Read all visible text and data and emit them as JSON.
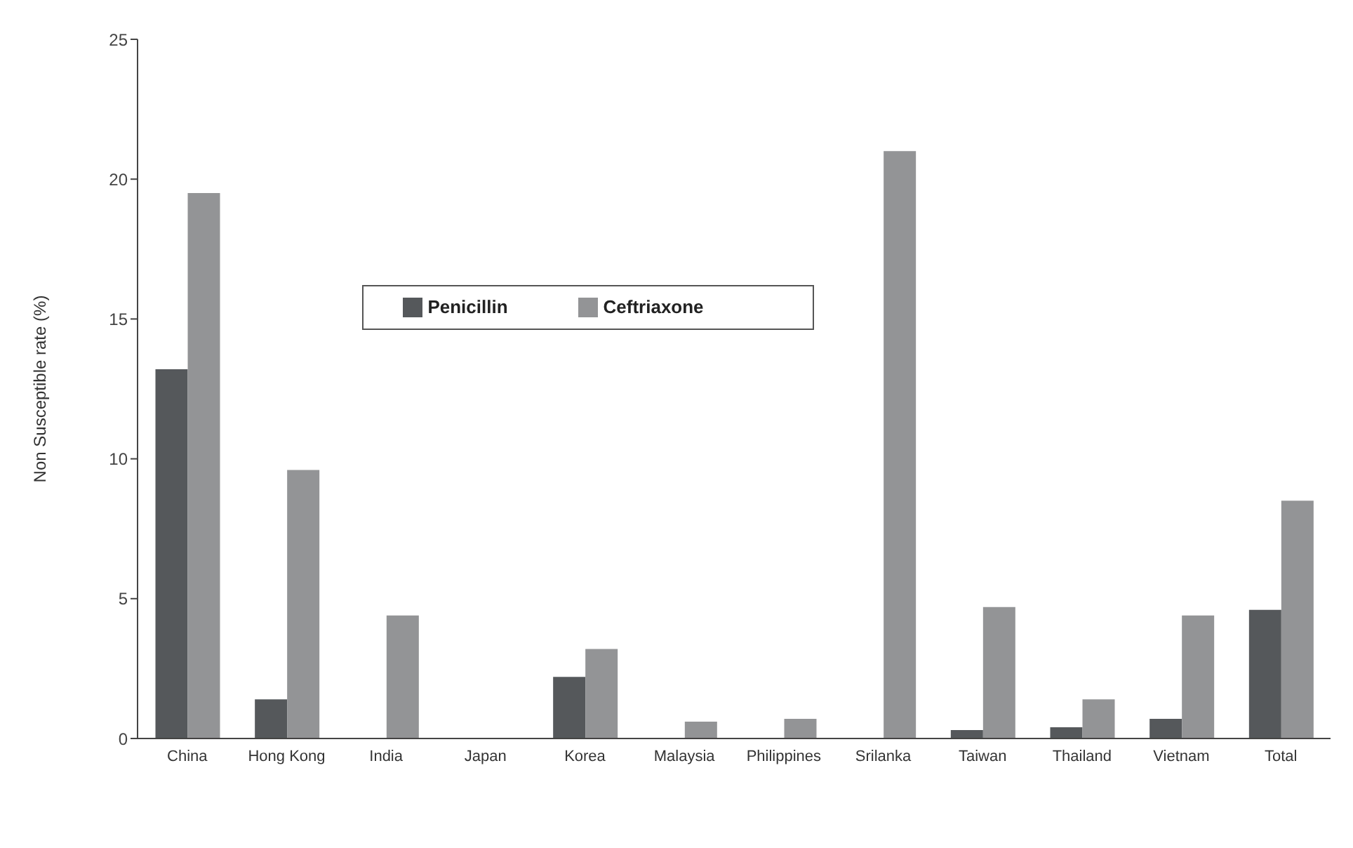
{
  "chart_data": {
    "type": "bar",
    "ylabel": "Non Susceptible rate (%)",
    "categories": [
      "China",
      "Hong Kong",
      "India",
      "Japan",
      "Korea",
      "Malaysia",
      "Philippines",
      "Srilanka",
      "Taiwan",
      "Thailand",
      "Vietnam",
      "Total"
    ],
    "series": [
      {
        "name": "Penicillin",
        "color": "#55585b",
        "values": [
          13.2,
          1.4,
          0,
          0,
          2.2,
          0,
          0,
          0,
          0.3,
          0.4,
          0.7,
          4.6
        ]
      },
      {
        "name": "Ceftriaxone",
        "color": "#939496",
        "values": [
          19.5,
          9.6,
          4.4,
          0,
          3.2,
          0.6,
          0.7,
          21.0,
          4.7,
          1.4,
          4.4,
          8.5
        ]
      }
    ],
    "ylim": [
      0,
      25
    ],
    "yticks": [
      0,
      5,
      10,
      15,
      20,
      25
    ],
    "grid": false,
    "legend": "top"
  }
}
